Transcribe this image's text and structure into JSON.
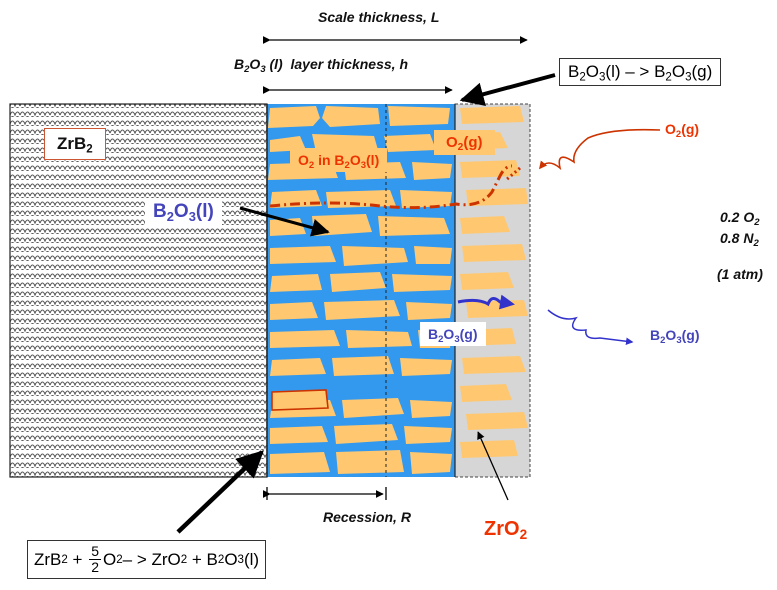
{
  "scale_thickness": {
    "text": "Scale thickness, L"
  },
  "layer_thickness": {
    "pre": "B",
    "s1": "2",
    "mid": "O",
    "s2": "3",
    "post": " (l)  layer thickness, h"
  },
  "reaction_vapor": {
    "a": "B",
    "a1": "2",
    "b": "O",
    "b1": "3",
    "c": "(l) – > B",
    "c1": "2",
    "d": "O",
    "d1": "3",
    "e": "(g)"
  },
  "zrb2_label": {
    "a": "ZrB",
    "a1": "2"
  },
  "o2_in_b2o3": {
    "a": "O",
    "a1": "2",
    "b": " in B",
    "b1": "2",
    "c": "O",
    "c1": "3",
    "d": "(l)"
  },
  "o2g_box": {
    "a": "O",
    "a1": "2",
    "b": "(g)"
  },
  "o2g_outer": {
    "a": "O",
    "a1": "2",
    "b": "(g)"
  },
  "b2o3l_label": {
    "a": "B",
    "a1": "2",
    "b": "O",
    "b1": "3",
    "c": "(l)"
  },
  "atmosphere": {
    "line1": {
      "a": "0.2 O",
      "a1": "2"
    },
    "line2": {
      "a": "0.8 N",
      "a1": "2"
    },
    "line3": "(1 atm)"
  },
  "b2o3g_box": {
    "a": "B",
    "a1": "2",
    "b": "O",
    "b1": "3",
    "c": "(g)"
  },
  "b2o3g_outer": {
    "a": "B",
    "a1": "2",
    "b": "O",
    "b1": "3",
    "c": "(g)"
  },
  "recession": {
    "text": "Recession, R"
  },
  "zro2_label": {
    "a": "ZrO",
    "a1": "2"
  },
  "reaction_oxidation": {
    "a": "ZrB",
    "a1": "2",
    "b": " + ",
    "num": "5",
    "den": "2",
    "c": "O",
    "c1": "2",
    "d": "– > ZrO",
    "d1": "2",
    "e": " + B",
    "e1": "2",
    "f": "O",
    "f1": "3",
    "g": "(l)"
  },
  "colors": {
    "liquid_b2o3": "#3399ee",
    "zro2_grains": "#ffc870",
    "porous_zro2": "#d6d6d6",
    "o2_arrow": "#cc3300",
    "b2o3_arrow": "#3333cc",
    "label_red": "#ee3300",
    "label_blue": "#4444bb"
  }
}
